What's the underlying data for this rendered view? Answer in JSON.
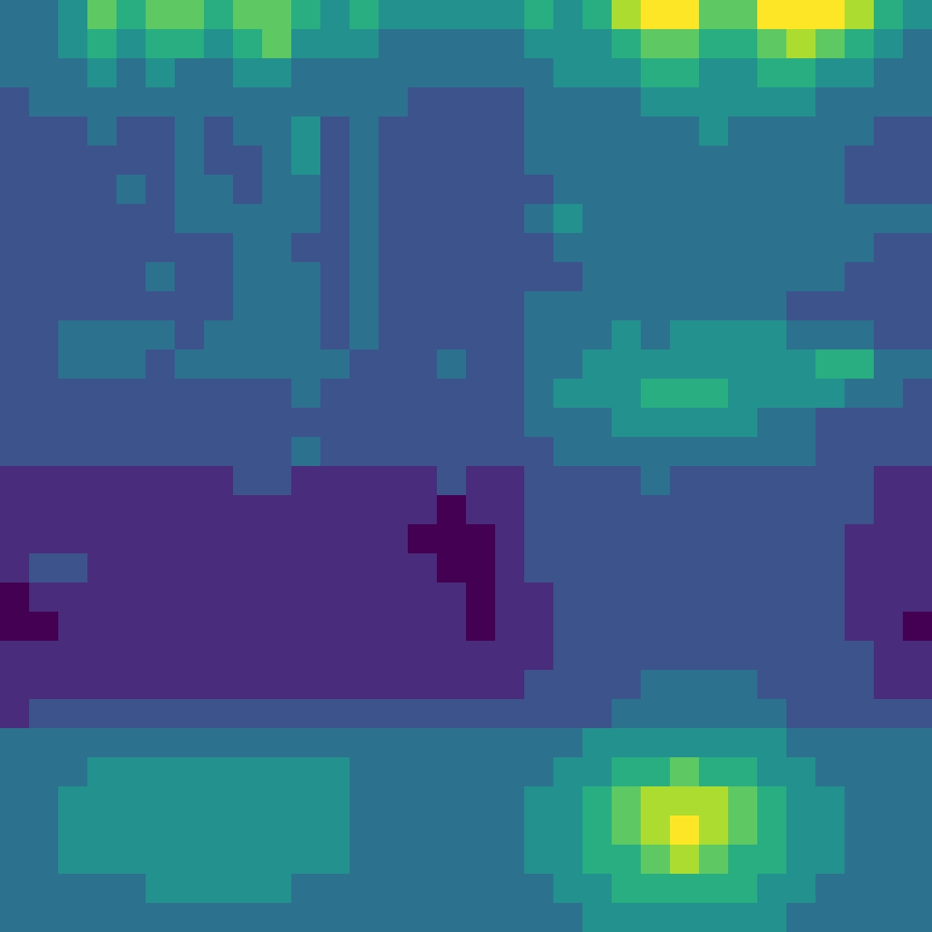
{
  "chart_data": {
    "type": "heatmap",
    "color": "viridis",
    "tick_labels": false,
    "cells": [
      [
        3,
        3,
        4,
        6,
        5,
        6,
        6,
        5,
        6,
        6,
        5,
        4,
        5,
        4,
        4,
        4,
        4,
        4,
        5,
        4,
        5,
        7,
        8,
        8,
        6,
        6,
        8,
        8,
        8,
        7,
        5,
        4
      ],
      [
        3,
        3,
        4,
        5,
        4,
        5,
        5,
        4,
        5,
        6,
        4,
        4,
        4,
        3,
        3,
        3,
        3,
        3,
        4,
        4,
        4,
        5,
        6,
        6,
        5,
        5,
        6,
        7,
        6,
        5,
        4,
        3
      ],
      [
        3,
        3,
        3,
        4,
        3,
        4,
        3,
        3,
        4,
        4,
        3,
        3,
        3,
        3,
        3,
        3,
        3,
        3,
        3,
        4,
        4,
        4,
        5,
        5,
        4,
        4,
        5,
        5,
        4,
        4,
        3,
        3
      ],
      [
        2,
        3,
        3,
        3,
        3,
        3,
        3,
        3,
        3,
        3,
        3,
        3,
        3,
        3,
        2,
        2,
        2,
        2,
        3,
        3,
        3,
        3,
        4,
        4,
        4,
        4,
        4,
        4,
        3,
        3,
        3,
        3
      ],
      [
        2,
        2,
        2,
        3,
        2,
        2,
        3,
        2,
        3,
        3,
        4,
        2,
        3,
        2,
        2,
        2,
        2,
        2,
        3,
        3,
        3,
        3,
        3,
        3,
        4,
        3,
        3,
        3,
        3,
        3,
        2,
        2
      ],
      [
        2,
        2,
        2,
        2,
        2,
        2,
        3,
        2,
        2,
        3,
        4,
        2,
        3,
        2,
        2,
        2,
        2,
        2,
        3,
        3,
        3,
        3,
        3,
        3,
        3,
        3,
        3,
        3,
        3,
        2,
        2,
        2
      ],
      [
        2,
        2,
        2,
        2,
        3,
        2,
        3,
        3,
        2,
        3,
        3,
        2,
        3,
        2,
        2,
        2,
        2,
        2,
        2,
        3,
        3,
        3,
        3,
        3,
        3,
        3,
        3,
        3,
        3,
        2,
        2,
        2
      ],
      [
        2,
        2,
        2,
        2,
        2,
        2,
        3,
        3,
        3,
        3,
        3,
        2,
        3,
        2,
        2,
        2,
        2,
        2,
        3,
        4,
        3,
        3,
        3,
        3,
        3,
        3,
        3,
        3,
        3,
        3,
        3,
        3
      ],
      [
        2,
        2,
        2,
        2,
        2,
        2,
        2,
        2,
        3,
        3,
        2,
        2,
        3,
        2,
        2,
        2,
        2,
        2,
        2,
        3,
        3,
        3,
        3,
        3,
        3,
        3,
        3,
        3,
        3,
        3,
        2,
        2
      ],
      [
        2,
        2,
        2,
        2,
        2,
        3,
        2,
        2,
        3,
        3,
        3,
        2,
        3,
        2,
        2,
        2,
        2,
        2,
        2,
        2,
        3,
        3,
        3,
        3,
        3,
        3,
        3,
        3,
        3,
        2,
        2,
        2
      ],
      [
        2,
        2,
        2,
        2,
        2,
        2,
        2,
        2,
        3,
        3,
        3,
        2,
        3,
        2,
        2,
        2,
        2,
        2,
        3,
        3,
        3,
        3,
        3,
        3,
        3,
        3,
        3,
        2,
        2,
        2,
        2,
        2
      ],
      [
        2,
        2,
        3,
        3,
        3,
        3,
        2,
        3,
        3,
        3,
        3,
        2,
        3,
        2,
        2,
        2,
        2,
        2,
        3,
        3,
        3,
        4,
        3,
        4,
        4,
        4,
        4,
        3,
        3,
        3,
        2,
        2
      ],
      [
        2,
        2,
        3,
        3,
        3,
        2,
        3,
        3,
        3,
        3,
        3,
        3,
        2,
        2,
        2,
        3,
        2,
        2,
        3,
        3,
        4,
        4,
        4,
        4,
        4,
        4,
        4,
        4,
        5,
        5,
        3,
        3
      ],
      [
        2,
        2,
        2,
        2,
        2,
        2,
        2,
        2,
        2,
        2,
        3,
        2,
        2,
        2,
        2,
        2,
        2,
        2,
        3,
        4,
        4,
        4,
        5,
        5,
        5,
        4,
        4,
        4,
        4,
        3,
        3,
        2
      ],
      [
        2,
        2,
        2,
        2,
        2,
        2,
        2,
        2,
        2,
        2,
        2,
        2,
        2,
        2,
        2,
        2,
        2,
        2,
        3,
        3,
        3,
        4,
        4,
        4,
        4,
        4,
        3,
        3,
        2,
        2,
        2,
        2
      ],
      [
        2,
        2,
        2,
        2,
        2,
        2,
        2,
        2,
        2,
        2,
        3,
        2,
        2,
        2,
        2,
        2,
        2,
        2,
        2,
        3,
        3,
        3,
        3,
        3,
        3,
        3,
        3,
        3,
        2,
        2,
        2,
        2
      ],
      [
        1,
        1,
        1,
        1,
        1,
        1,
        1,
        1,
        2,
        2,
        1,
        1,
        1,
        1,
        1,
        2,
        1,
        1,
        2,
        2,
        2,
        2,
        3,
        2,
        2,
        2,
        2,
        2,
        2,
        2,
        1,
        1
      ],
      [
        1,
        1,
        1,
        1,
        1,
        1,
        1,
        1,
        1,
        1,
        1,
        1,
        1,
        1,
        1,
        0,
        1,
        1,
        2,
        2,
        2,
        2,
        2,
        2,
        2,
        2,
        2,
        2,
        2,
        2,
        1,
        1
      ],
      [
        1,
        1,
        1,
        1,
        1,
        1,
        1,
        1,
        1,
        1,
        1,
        1,
        1,
        1,
        0,
        0,
        0,
        1,
        2,
        2,
        2,
        2,
        2,
        2,
        2,
        2,
        2,
        2,
        2,
        1,
        1,
        1
      ],
      [
        1,
        2,
        2,
        1,
        1,
        1,
        1,
        1,
        1,
        1,
        1,
        1,
        1,
        1,
        1,
        0,
        0,
        1,
        2,
        2,
        2,
        2,
        2,
        2,
        2,
        2,
        2,
        2,
        2,
        1,
        1,
        1
      ],
      [
        0,
        1,
        1,
        1,
        1,
        1,
        1,
        1,
        1,
        1,
        1,
        1,
        1,
        1,
        1,
        1,
        0,
        1,
        1,
        2,
        2,
        2,
        2,
        2,
        2,
        2,
        2,
        2,
        2,
        1,
        1,
        1
      ],
      [
        0,
        0,
        1,
        1,
        1,
        1,
        1,
        1,
        1,
        1,
        1,
        1,
        1,
        1,
        1,
        1,
        0,
        1,
        1,
        2,
        2,
        2,
        2,
        2,
        2,
        2,
        2,
        2,
        2,
        1,
        1,
        0
      ],
      [
        1,
        1,
        1,
        1,
        1,
        1,
        1,
        1,
        1,
        1,
        1,
        1,
        1,
        1,
        1,
        1,
        1,
        1,
        1,
        2,
        2,
        2,
        2,
        2,
        2,
        2,
        2,
        2,
        2,
        2,
        1,
        1
      ],
      [
        1,
        1,
        1,
        1,
        1,
        1,
        1,
        1,
        1,
        1,
        1,
        1,
        1,
        1,
        1,
        1,
        1,
        1,
        2,
        2,
        2,
        2,
        3,
        3,
        3,
        3,
        2,
        2,
        2,
        2,
        1,
        1
      ],
      [
        1,
        2,
        2,
        2,
        2,
        2,
        2,
        2,
        2,
        2,
        2,
        2,
        2,
        2,
        2,
        2,
        2,
        2,
        2,
        2,
        2,
        3,
        3,
        3,
        3,
        3,
        3,
        2,
        2,
        2,
        2,
        2
      ],
      [
        3,
        3,
        3,
        3,
        3,
        3,
        3,
        3,
        3,
        3,
        3,
        3,
        3,
        3,
        3,
        3,
        3,
        3,
        3,
        3,
        4,
        4,
        4,
        4,
        4,
        4,
        4,
        3,
        3,
        3,
        3,
        3
      ],
      [
        3,
        3,
        3,
        4,
        4,
        4,
        4,
        4,
        4,
        4,
        4,
        4,
        3,
        3,
        3,
        3,
        3,
        3,
        3,
        4,
        4,
        5,
        5,
        6,
        5,
        5,
        4,
        4,
        3,
        3,
        3,
        3
      ],
      [
        3,
        3,
        4,
        4,
        4,
        4,
        4,
        4,
        4,
        4,
        4,
        4,
        3,
        3,
        3,
        3,
        3,
        3,
        4,
        4,
        5,
        6,
        7,
        7,
        7,
        6,
        5,
        4,
        4,
        3,
        3,
        3
      ],
      [
        3,
        3,
        4,
        4,
        4,
        4,
        4,
        4,
        4,
        4,
        4,
        4,
        3,
        3,
        3,
        3,
        3,
        3,
        4,
        4,
        5,
        6,
        7,
        8,
        7,
        6,
        5,
        4,
        4,
        3,
        3,
        3
      ],
      [
        3,
        3,
        4,
        4,
        4,
        4,
        4,
        4,
        4,
        4,
        4,
        4,
        3,
        3,
        3,
        3,
        3,
        3,
        4,
        4,
        5,
        5,
        6,
        7,
        6,
        5,
        5,
        4,
        4,
        3,
        3,
        3
      ],
      [
        3,
        3,
        3,
        3,
        3,
        4,
        4,
        4,
        4,
        4,
        3,
        3,
        3,
        3,
        3,
        3,
        3,
        3,
        3,
        4,
        4,
        5,
        5,
        5,
        5,
        5,
        4,
        4,
        3,
        3,
        3,
        3
      ],
      [
        3,
        3,
        3,
        3,
        3,
        3,
        3,
        3,
        3,
        3,
        3,
        3,
        3,
        3,
        3,
        3,
        3,
        3,
        3,
        3,
        4,
        4,
        4,
        4,
        4,
        4,
        4,
        3,
        3,
        3,
        3,
        3
      ]
    ]
  }
}
